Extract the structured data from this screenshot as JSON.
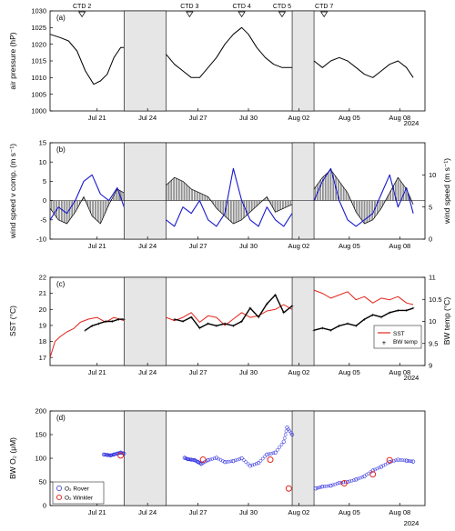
{
  "x_axis": {
    "tick_labels": [
      "Jul 21",
      "Jul 24",
      "Jul 27",
      "Jul 30",
      "Aug 02",
      "Aug 05",
      "Aug 08"
    ],
    "tick_days": [
      21,
      24,
      27,
      30,
      33,
      36,
      39
    ],
    "year_label": "2024",
    "domain_days": [
      18.2,
      40.5
    ]
  },
  "gaps": [
    {
      "start": 22.6,
      "end": 25.1
    },
    {
      "start": 32.6,
      "end": 33.9
    }
  ],
  "ctd_markers": [
    {
      "label": "CTD 2",
      "day": 20.1
    },
    {
      "label": "CTD 3",
      "day": 26.5
    },
    {
      "label": "CTD 4",
      "day": 29.6
    },
    {
      "label": "CTD 5",
      "day": 32.0
    },
    {
      "label": "CTD 7",
      "day": 34.5
    }
  ],
  "colors": {
    "pressure": "#000000",
    "wind_v": "#000000",
    "wind_speed": "#1a1acc",
    "sst": "#e3241b",
    "bw_temp": "#000000",
    "o2_rover": "#2a2ae0",
    "o2_winkler": "#e3241b",
    "gap_fill": "#e6e6e6"
  },
  "chart_data": [
    {
      "panel_label": "(a)",
      "type": "line",
      "ylabel": "air pressure (hP)",
      "ylim": [
        1000,
        1030
      ],
      "yticks": [
        1000,
        1005,
        1010,
        1015,
        1020,
        1025,
        1030
      ],
      "segments": [
        {
          "x": [
            18.2,
            18.8,
            19.3,
            19.8,
            20.3,
            20.8,
            21.2,
            21.6,
            22.0,
            22.4,
            22.6
          ],
          "y": [
            1023,
            1022,
            1021,
            1018,
            1012,
            1008,
            1009,
            1011,
            1016,
            1019,
            1019
          ]
        },
        {
          "x": [
            25.1,
            25.6,
            26.1,
            26.6,
            27.1,
            27.6,
            28.1,
            28.6,
            29.1,
            29.6,
            30.0,
            30.5,
            31.0,
            31.5,
            32.0,
            32.6
          ],
          "y": [
            1017,
            1014,
            1012,
            1010,
            1010,
            1013,
            1016,
            1020,
            1023,
            1025,
            1023,
            1019,
            1016,
            1014,
            1013,
            1013
          ]
        },
        {
          "x": [
            33.9,
            34.4,
            34.9,
            35.4,
            35.9,
            36.4,
            36.9,
            37.4,
            37.9,
            38.4,
            38.9,
            39.4,
            39.8
          ],
          "y": [
            1015,
            1013,
            1015,
            1016,
            1015,
            1013,
            1011,
            1010,
            1012,
            1014,
            1015,
            1013,
            1010
          ]
        }
      ]
    },
    {
      "panel_label": "(b)",
      "type": "line",
      "ylabel": "wind speed v comp. (m s⁻¹)",
      "ylabel_right": "wind speed (m s⁻¹)",
      "ylim": [
        -10,
        15
      ],
      "yticks": [
        -10,
        -5,
        0,
        5,
        10,
        15
      ],
      "ylim_right": [
        0,
        15
      ],
      "yticks_right": [
        0,
        5,
        10
      ],
      "v_component": [
        {
          "x": [
            18.2,
            18.7,
            19.2,
            19.7,
            20.2,
            20.7,
            21.2,
            21.7,
            22.2,
            22.6
          ],
          "y": [
            -2,
            -5,
            -6,
            -3,
            1,
            -4,
            -6,
            -1,
            3,
            2
          ]
        },
        {
          "x": [
            25.1,
            25.6,
            26.1,
            26.6,
            27.1,
            27.6,
            28.1,
            28.6,
            29.1,
            29.6,
            30.1,
            30.6,
            31.1,
            31.6,
            32.1,
            32.6
          ],
          "y": [
            4,
            6,
            5,
            3,
            2,
            1,
            -2,
            -4,
            -6,
            -5,
            -3,
            -1,
            1,
            -3,
            -2,
            -1
          ]
        },
        {
          "x": [
            33.9,
            34.4,
            34.9,
            35.4,
            35.9,
            36.4,
            36.9,
            37.4,
            37.9,
            38.4,
            38.9,
            39.4,
            39.8
          ],
          "y": [
            3,
            6,
            8,
            5,
            2,
            -3,
            -6,
            -5,
            -2,
            2,
            6,
            3,
            -1
          ]
        }
      ],
      "wind_speed": [
        {
          "x": [
            18.2,
            18.7,
            19.2,
            19.7,
            20.2,
            20.7,
            21.2,
            21.7,
            22.2,
            22.6
          ],
          "y": [
            3,
            5,
            4,
            6,
            9,
            10,
            7,
            6,
            8,
            5
          ]
        },
        {
          "x": [
            25.1,
            25.6,
            26.1,
            26.6,
            27.1,
            27.6,
            28.1,
            28.6,
            29.1,
            29.6,
            30.1,
            30.6,
            31.1,
            31.6,
            32.1,
            32.6
          ],
          "y": [
            3,
            2,
            5,
            4,
            6,
            3,
            2,
            4,
            11,
            6,
            3,
            2,
            5,
            3,
            2,
            4
          ]
        },
        {
          "x": [
            33.9,
            34.4,
            34.9,
            35.4,
            35.9,
            36.4,
            36.9,
            37.4,
            37.9,
            38.4,
            38.9,
            39.4,
            39.8
          ],
          "y": [
            6,
            9,
            11,
            6,
            3,
            2,
            3,
            4,
            7,
            10,
            5,
            8,
            4
          ]
        }
      ]
    },
    {
      "panel_label": "(c)",
      "type": "line",
      "ylabel": "SST (°C)",
      "ylabel_right": "BW temp (°C)",
      "ylim": [
        16.5,
        22
      ],
      "yticks": [
        17,
        18,
        19,
        20,
        21,
        22
      ],
      "ytick_labels": [
        "17",
        "18",
        "19",
        "20",
        "21",
        "22"
      ],
      "ylim_right": [
        9,
        11
      ],
      "yticks_right": [
        9,
        9.5,
        10,
        10.5,
        11
      ],
      "ytick_labels_right": [
        "9",
        "9.5",
        "10",
        "10.5",
        "11"
      ],
      "sst": [
        {
          "x": [
            18.2,
            18.5,
            18.8,
            19.2,
            19.6,
            20.0,
            20.5,
            21.0,
            21.5,
            22.0,
            22.6
          ],
          "y": [
            17.0,
            18.0,
            18.3,
            18.6,
            18.8,
            19.2,
            19.4,
            19.5,
            19.2,
            19.5,
            19.3
          ]
        },
        {
          "x": [
            25.1,
            25.6,
            26.1,
            26.6,
            27.1,
            27.6,
            28.1,
            28.6,
            29.1,
            29.6,
            30.1,
            30.6,
            31.1,
            31.6,
            32.1,
            32.6
          ],
          "y": [
            19.5,
            19.3,
            19.5,
            19.8,
            19.2,
            19.6,
            19.5,
            19.0,
            19.4,
            19.8,
            19.5,
            19.6,
            19.9,
            20.0,
            20.3,
            20.0
          ]
        },
        {
          "x": [
            33.9,
            34.4,
            34.9,
            35.4,
            35.9,
            36.4,
            36.9,
            37.4,
            37.9,
            38.4,
            38.9,
            39.4,
            39.8
          ],
          "y": [
            21.2,
            21.0,
            20.7,
            20.9,
            21.1,
            20.6,
            20.8,
            20.4,
            20.7,
            20.6,
            20.8,
            20.4,
            20.3
          ]
        }
      ],
      "bw_temp": [
        {
          "x": [
            20.3,
            20.7,
            21.1,
            21.5,
            21.9,
            22.3,
            22.6
          ],
          "y": [
            9.8,
            9.9,
            9.95,
            10.0,
            10.0,
            10.05,
            10.05
          ]
        },
        {
          "x": [
            25.6,
            26.1,
            26.6,
            27.1,
            27.6,
            28.1,
            28.6,
            29.1,
            29.6,
            30.1,
            30.6,
            31.1,
            31.6,
            32.1,
            32.6
          ],
          "y": [
            10.05,
            10.0,
            10.1,
            9.85,
            9.95,
            9.9,
            9.95,
            9.9,
            10.0,
            10.3,
            10.1,
            10.4,
            10.6,
            10.2,
            10.35
          ]
        },
        {
          "x": [
            33.9,
            34.4,
            34.9,
            35.4,
            35.9,
            36.4,
            36.9,
            37.4,
            37.9,
            38.4,
            38.9,
            39.4,
            39.8
          ],
          "y": [
            9.8,
            9.85,
            9.8,
            9.9,
            9.95,
            9.9,
            10.05,
            10.15,
            10.1,
            10.2,
            10.25,
            10.25,
            10.3
          ]
        }
      ],
      "legend": [
        "SST",
        "BW temp"
      ]
    },
    {
      "panel_label": "(d)",
      "type": "scatter",
      "ylabel": "BW O₂ (μM)",
      "ylim": [
        0,
        200
      ],
      "yticks": [
        0,
        50,
        100,
        150,
        200
      ],
      "o2_rover": [
        {
          "x": [
            21.4,
            21.6,
            21.8,
            22.0,
            22.2,
            22.4,
            22.6
          ],
          "y": [
            108,
            107,
            106,
            108,
            110,
            112,
            110
          ]
        },
        {
          "x": [
            26.2,
            26.4,
            26.6,
            26.8,
            27.0,
            27.2,
            27.6,
            28.1,
            28.6,
            29.1,
            29.6,
            30.1,
            30.6,
            31.1,
            31.6,
            32.1,
            32.3,
            32.6
          ],
          "y": [
            101,
            98,
            97,
            96,
            92,
            88,
            96,
            101,
            92,
            94,
            100,
            84,
            90,
            108,
            112,
            135,
            165,
            150
          ]
        },
        {
          "x": [
            34.0,
            34.4,
            34.9,
            35.4,
            35.9,
            36.4,
            36.9,
            37.4,
            37.9,
            38.4,
            38.9,
            39.4,
            39.8
          ],
          "y": [
            36,
            40,
            42,
            48,
            50,
            55,
            62,
            74,
            82,
            92,
            97,
            95,
            93
          ]
        }
      ],
      "o2_winkler": {
        "x": [
          22.4,
          27.3,
          31.3,
          32.4,
          35.7,
          37.4,
          38.4
        ],
        "y": [
          106,
          97,
          97,
          36,
          47,
          66,
          96
        ]
      },
      "legend": [
        "O₂ Rover",
        "O₂ Winkler"
      ]
    }
  ]
}
